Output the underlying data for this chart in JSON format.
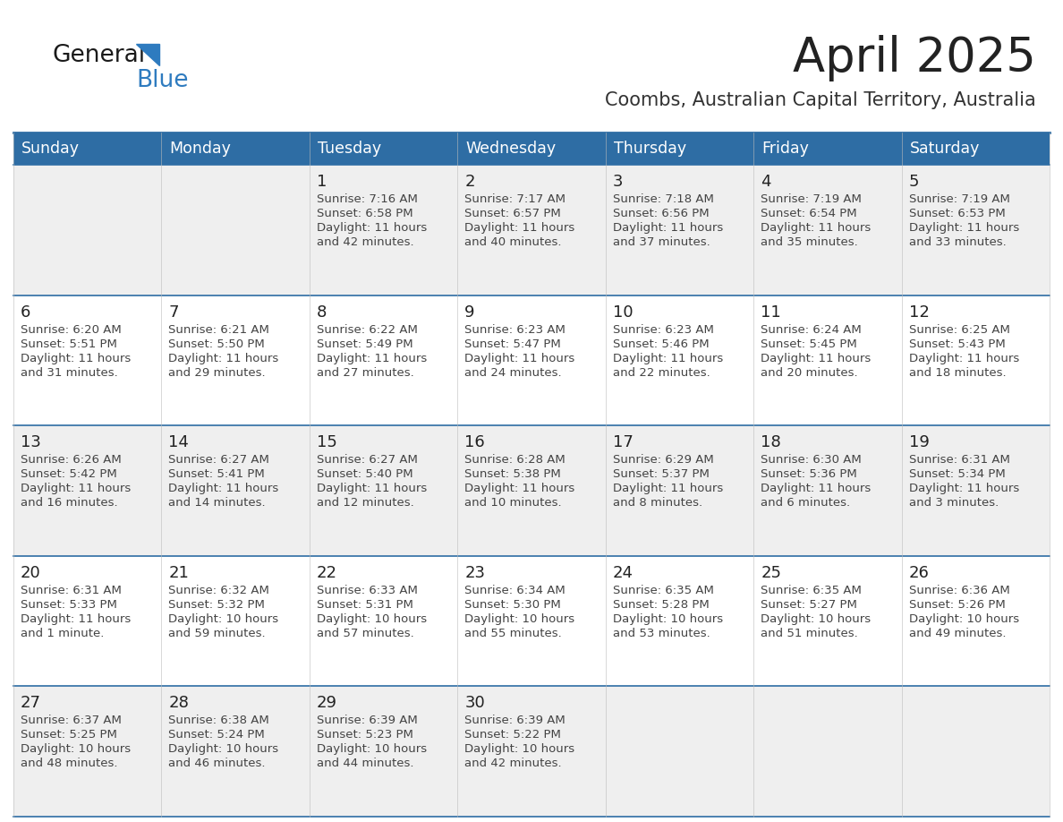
{
  "title": "April 2025",
  "subtitle": "Coombs, Australian Capital Territory, Australia",
  "header_bg": "#2E6DA4",
  "header_text_color": "#FFFFFF",
  "cell_bg_odd": "#EFEFEF",
  "cell_bg_even": "#FFFFFF",
  "row_separator_color": "#2E6DA4",
  "title_color": "#222222",
  "subtitle_color": "#333333",
  "day_num_color": "#222222",
  "cell_text_color": "#444444",
  "logo_color1": "#1a1a1a",
  "logo_color2": "#2E7BBF",
  "triangle_color": "#2E7BBF",
  "day_headers": [
    "Sunday",
    "Monday",
    "Tuesday",
    "Wednesday",
    "Thursday",
    "Friday",
    "Saturday"
  ],
  "calendar": [
    [
      {
        "day": "",
        "sunrise": "",
        "sunset": "",
        "daylight": ""
      },
      {
        "day": "",
        "sunrise": "",
        "sunset": "",
        "daylight": ""
      },
      {
        "day": "1",
        "sunrise": "7:16 AM",
        "sunset": "6:58 PM",
        "daylight": "11 hours and 42 minutes."
      },
      {
        "day": "2",
        "sunrise": "7:17 AM",
        "sunset": "6:57 PM",
        "daylight": "11 hours and 40 minutes."
      },
      {
        "day": "3",
        "sunrise": "7:18 AM",
        "sunset": "6:56 PM",
        "daylight": "11 hours and 37 minutes."
      },
      {
        "day": "4",
        "sunrise": "7:19 AM",
        "sunset": "6:54 PM",
        "daylight": "11 hours and 35 minutes."
      },
      {
        "day": "5",
        "sunrise": "7:19 AM",
        "sunset": "6:53 PM",
        "daylight": "11 hours and 33 minutes."
      }
    ],
    [
      {
        "day": "6",
        "sunrise": "6:20 AM",
        "sunset": "5:51 PM",
        "daylight": "11 hours and 31 minutes."
      },
      {
        "day": "7",
        "sunrise": "6:21 AM",
        "sunset": "5:50 PM",
        "daylight": "11 hours and 29 minutes."
      },
      {
        "day": "8",
        "sunrise": "6:22 AM",
        "sunset": "5:49 PM",
        "daylight": "11 hours and 27 minutes."
      },
      {
        "day": "9",
        "sunrise": "6:23 AM",
        "sunset": "5:47 PM",
        "daylight": "11 hours and 24 minutes."
      },
      {
        "day": "10",
        "sunrise": "6:23 AM",
        "sunset": "5:46 PM",
        "daylight": "11 hours and 22 minutes."
      },
      {
        "day": "11",
        "sunrise": "6:24 AM",
        "sunset": "5:45 PM",
        "daylight": "11 hours and 20 minutes."
      },
      {
        "day": "12",
        "sunrise": "6:25 AM",
        "sunset": "5:43 PM",
        "daylight": "11 hours and 18 minutes."
      }
    ],
    [
      {
        "day": "13",
        "sunrise": "6:26 AM",
        "sunset": "5:42 PM",
        "daylight": "11 hours and 16 minutes."
      },
      {
        "day": "14",
        "sunrise": "6:27 AM",
        "sunset": "5:41 PM",
        "daylight": "11 hours and 14 minutes."
      },
      {
        "day": "15",
        "sunrise": "6:27 AM",
        "sunset": "5:40 PM",
        "daylight": "11 hours and 12 minutes."
      },
      {
        "day": "16",
        "sunrise": "6:28 AM",
        "sunset": "5:38 PM",
        "daylight": "11 hours and 10 minutes."
      },
      {
        "day": "17",
        "sunrise": "6:29 AM",
        "sunset": "5:37 PM",
        "daylight": "11 hours and 8 minutes."
      },
      {
        "day": "18",
        "sunrise": "6:30 AM",
        "sunset": "5:36 PM",
        "daylight": "11 hours and 6 minutes."
      },
      {
        "day": "19",
        "sunrise": "6:31 AM",
        "sunset": "5:34 PM",
        "daylight": "11 hours and 3 minutes."
      }
    ],
    [
      {
        "day": "20",
        "sunrise": "6:31 AM",
        "sunset": "5:33 PM",
        "daylight": "11 hours and 1 minute."
      },
      {
        "day": "21",
        "sunrise": "6:32 AM",
        "sunset": "5:32 PM",
        "daylight": "10 hours and 59 minutes."
      },
      {
        "day": "22",
        "sunrise": "6:33 AM",
        "sunset": "5:31 PM",
        "daylight": "10 hours and 57 minutes."
      },
      {
        "day": "23",
        "sunrise": "6:34 AM",
        "sunset": "5:30 PM",
        "daylight": "10 hours and 55 minutes."
      },
      {
        "day": "24",
        "sunrise": "6:35 AM",
        "sunset": "5:28 PM",
        "daylight": "10 hours and 53 minutes."
      },
      {
        "day": "25",
        "sunrise": "6:35 AM",
        "sunset": "5:27 PM",
        "daylight": "10 hours and 51 minutes."
      },
      {
        "day": "26",
        "sunrise": "6:36 AM",
        "sunset": "5:26 PM",
        "daylight": "10 hours and 49 minutes."
      }
    ],
    [
      {
        "day": "27",
        "sunrise": "6:37 AM",
        "sunset": "5:25 PM",
        "daylight": "10 hours and 48 minutes."
      },
      {
        "day": "28",
        "sunrise": "6:38 AM",
        "sunset": "5:24 PM",
        "daylight": "10 hours and 46 minutes."
      },
      {
        "day": "29",
        "sunrise": "6:39 AM",
        "sunset": "5:23 PM",
        "daylight": "10 hours and 44 minutes."
      },
      {
        "day": "30",
        "sunrise": "6:39 AM",
        "sunset": "5:22 PM",
        "daylight": "10 hours and 42 minutes."
      },
      {
        "day": "",
        "sunrise": "",
        "sunset": "",
        "daylight": ""
      },
      {
        "day": "",
        "sunrise": "",
        "sunset": "",
        "daylight": ""
      },
      {
        "day": "",
        "sunrise": "",
        "sunset": "",
        "daylight": ""
      }
    ]
  ]
}
